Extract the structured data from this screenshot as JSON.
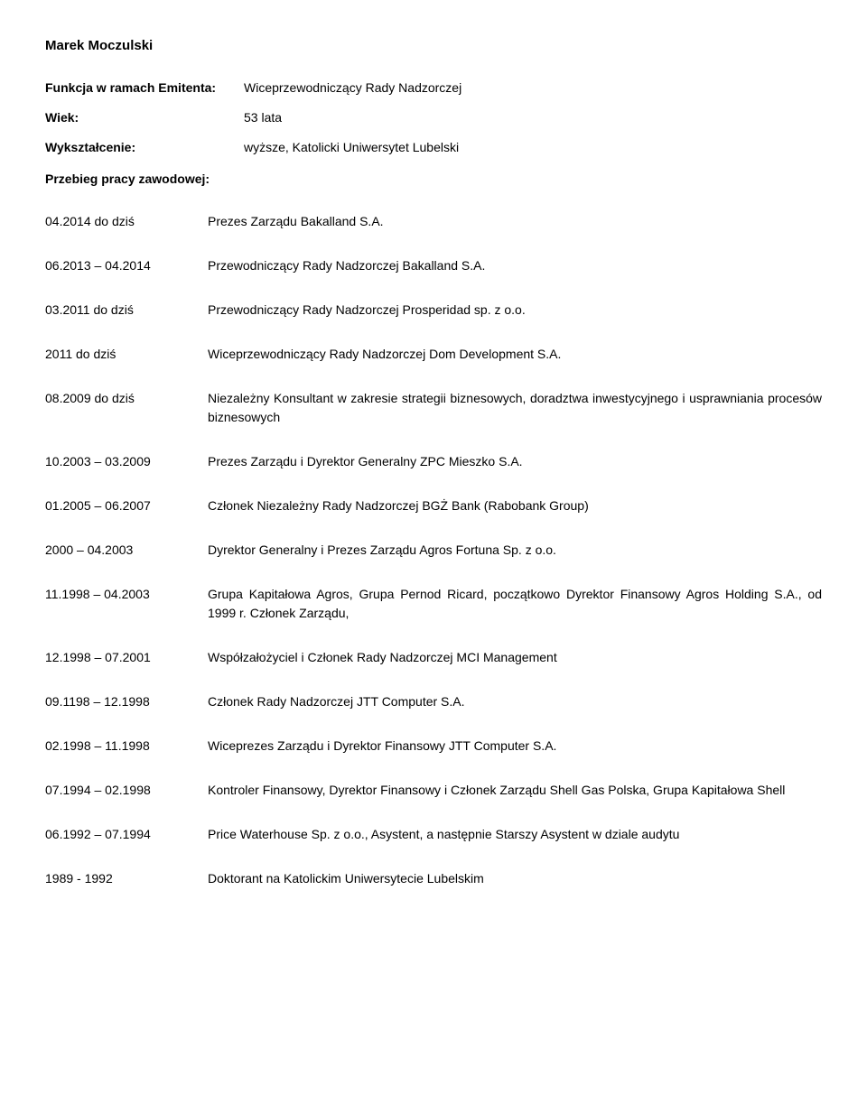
{
  "name": "Marek Moczulski",
  "labels": {
    "funkcja": "Funkcja w ramach Emitenta:",
    "wiek": "Wiek:",
    "wyksztalcenie": "Wykształcenie:",
    "przebieg": "Przebieg pracy zawodowej:"
  },
  "header": {
    "funkcja": "Wiceprzewodniczący Rady Nadzorczej",
    "wiek": "53 lata",
    "wyksztalcenie": "wyższe, Katolicki Uniwersytet Lubelski"
  },
  "entries": [
    {
      "date": "04.2014 do dziś",
      "desc": "Prezes Zarządu Bakalland S.A."
    },
    {
      "date": "06.2013 – 04.2014",
      "desc": "Przewodniczący Rady Nadzorczej Bakalland S.A."
    },
    {
      "date": "03.2011 do dziś",
      "desc": "Przewodniczący Rady Nadzorczej Prosperidad sp. z o.o."
    },
    {
      "date": "2011 do dziś",
      "desc": "Wiceprzewodniczący Rady Nadzorczej Dom Development S.A."
    },
    {
      "date": "08.2009 do dziś",
      "desc": "Niezależny Konsultant w zakresie strategii biznesowych, doradztwa inwestycyjnego i usprawniania procesów biznesowych"
    },
    {
      "date": "10.2003 – 03.2009",
      "desc": "Prezes Zarządu i Dyrektor Generalny ZPC Mieszko S.A."
    },
    {
      "date": "01.2005 – 06.2007",
      "desc": "Członek Niezależny Rady Nadzorczej BGŻ Bank (Rabobank Group)"
    },
    {
      "date": "2000 – 04.2003",
      "desc": "Dyrektor Generalny i Prezes Zarządu Agros Fortuna Sp. z o.o."
    },
    {
      "date": "11.1998 – 04.2003",
      "desc": "Grupa Kapitałowa Agros, Grupa Pernod Ricard, początkowo Dyrektor Finansowy Agros Holding S.A., od 1999 r. Członek Zarządu,"
    },
    {
      "date": "12.1998 – 07.2001",
      "desc": "Współzałożyciel i Członek Rady Nadzorczej MCI Management"
    },
    {
      "date": "09.1198 – 12.1998",
      "desc": "Członek Rady Nadzorczej JTT Computer S.A."
    },
    {
      "date": "02.1998 – 11.1998",
      "desc": "Wiceprezes Zarządu i Dyrektor Finansowy JTT Computer S.A."
    },
    {
      "date": "07.1994 – 02.1998",
      "desc": "Kontroler Finansowy, Dyrektor Finansowy i Członek Zarządu Shell Gas Polska, Grupa Kapitałowa Shell"
    },
    {
      "date": "06.1992 – 07.1994",
      "desc": "Price Waterhouse Sp. z o.o., Asystent, a następnie Starszy Asystent w dziale audytu"
    },
    {
      "date": "1989 - 1992",
      "desc": "Doktorant na Katolickim Uniwersytecie Lubelskim"
    }
  ]
}
